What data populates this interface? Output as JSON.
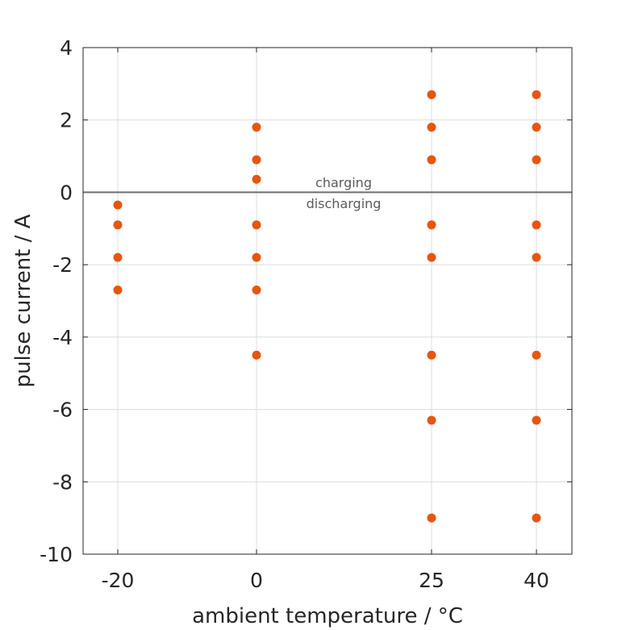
{
  "chart_data": {
    "type": "scatter",
    "xlabel": "ambient temperature / °C",
    "ylabel": "pulse current / A",
    "xlim": [
      -20,
      40
    ],
    "ylim": [
      -10,
      4
    ],
    "xticks": [
      -20,
      0,
      25,
      40
    ],
    "yticks": [
      4,
      2,
      0,
      -2,
      -4,
      -6,
      -8,
      -10
    ],
    "grid": true,
    "reference_line": {
      "y": 0,
      "color": "#6e6e6e"
    },
    "annotations": [
      {
        "text": "charging",
        "x": 12.5,
        "y": 0.3
      },
      {
        "text": "discharging",
        "x": 12.5,
        "y": -0.3
      }
    ],
    "marker_color": "#e8550f",
    "points": [
      {
        "x": -20,
        "y": -0.35
      },
      {
        "x": -20,
        "y": -0.9
      },
      {
        "x": -20,
        "y": -1.8
      },
      {
        "x": -20,
        "y": -2.7
      },
      {
        "x": 0,
        "y": 1.8
      },
      {
        "x": 0,
        "y": 0.9
      },
      {
        "x": 0,
        "y": 0.36
      },
      {
        "x": 0,
        "y": -0.9
      },
      {
        "x": 0,
        "y": -1.8
      },
      {
        "x": 0,
        "y": -2.7
      },
      {
        "x": 0,
        "y": -4.5
      },
      {
        "x": 25,
        "y": 2.7
      },
      {
        "x": 25,
        "y": 1.8
      },
      {
        "x": 25,
        "y": 0.9
      },
      {
        "x": 25,
        "y": -0.9
      },
      {
        "x": 25,
        "y": -1.8
      },
      {
        "x": 25,
        "y": -4.5
      },
      {
        "x": 25,
        "y": -6.3
      },
      {
        "x": 25,
        "y": -9
      },
      {
        "x": 40,
        "y": 2.7
      },
      {
        "x": 40,
        "y": 1.8
      },
      {
        "x": 40,
        "y": 0.9
      },
      {
        "x": 40,
        "y": -0.9
      },
      {
        "x": 40,
        "y": -1.8
      },
      {
        "x": 40,
        "y": -4.5
      },
      {
        "x": 40,
        "y": -6.3
      },
      {
        "x": 40,
        "y": -9
      }
    ]
  }
}
